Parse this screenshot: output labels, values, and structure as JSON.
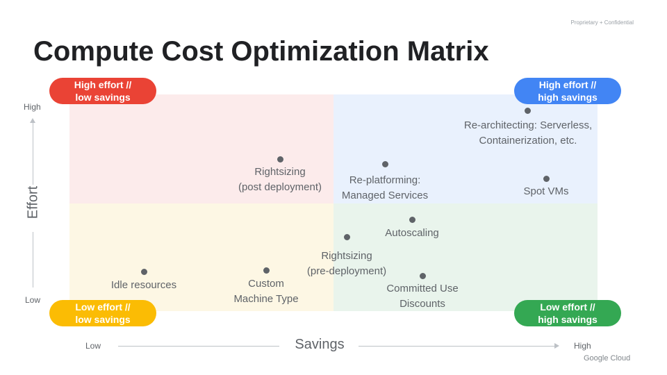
{
  "header": {
    "confidential": "Proprietary + Confidential",
    "title": "Compute Cost Optimization Matrix"
  },
  "quadrants": {
    "top_left": {
      "line1": "High effort //",
      "line2": "low savings",
      "color": "#ea4335"
    },
    "top_right": {
      "line1": "High effort //",
      "line2": "high savings",
      "color": "#4285f4"
    },
    "bottom_left": {
      "line1": "Low effort //",
      "line2": "low savings",
      "color": "#fbbc04"
    },
    "bottom_right": {
      "line1": "Low effort //",
      "line2": "high savings",
      "color": "#34a853"
    }
  },
  "axes": {
    "y_label": "Effort",
    "y_high": "High",
    "y_low": "Low",
    "x_label": "Savings",
    "x_low": "Low",
    "x_high": "High"
  },
  "points": {
    "rearchitecting": {
      "line1": "Re-architecting: Serverless,",
      "line2": "Containerization, etc."
    },
    "rightsizing_post": {
      "line1": "Rightsizing",
      "line2": "(post deployment)"
    },
    "replatforming": {
      "line1": "Re-platforming:",
      "line2": "Managed Services"
    },
    "spot_vms": {
      "line1": "Spot VMs"
    },
    "autoscaling": {
      "line1": "Autoscaling"
    },
    "rightsizing_pre": {
      "line1": "Rightsizing",
      "line2": "(pre-deployment)"
    },
    "idle_resources": {
      "line1": "Idle resources"
    },
    "custom_machine": {
      "line1": "Custom",
      "line2": "Machine Type"
    },
    "committed_use": {
      "line1": "Committed Use",
      "line2": "Discounts"
    }
  },
  "footer": {
    "brand": "Google Cloud"
  }
}
